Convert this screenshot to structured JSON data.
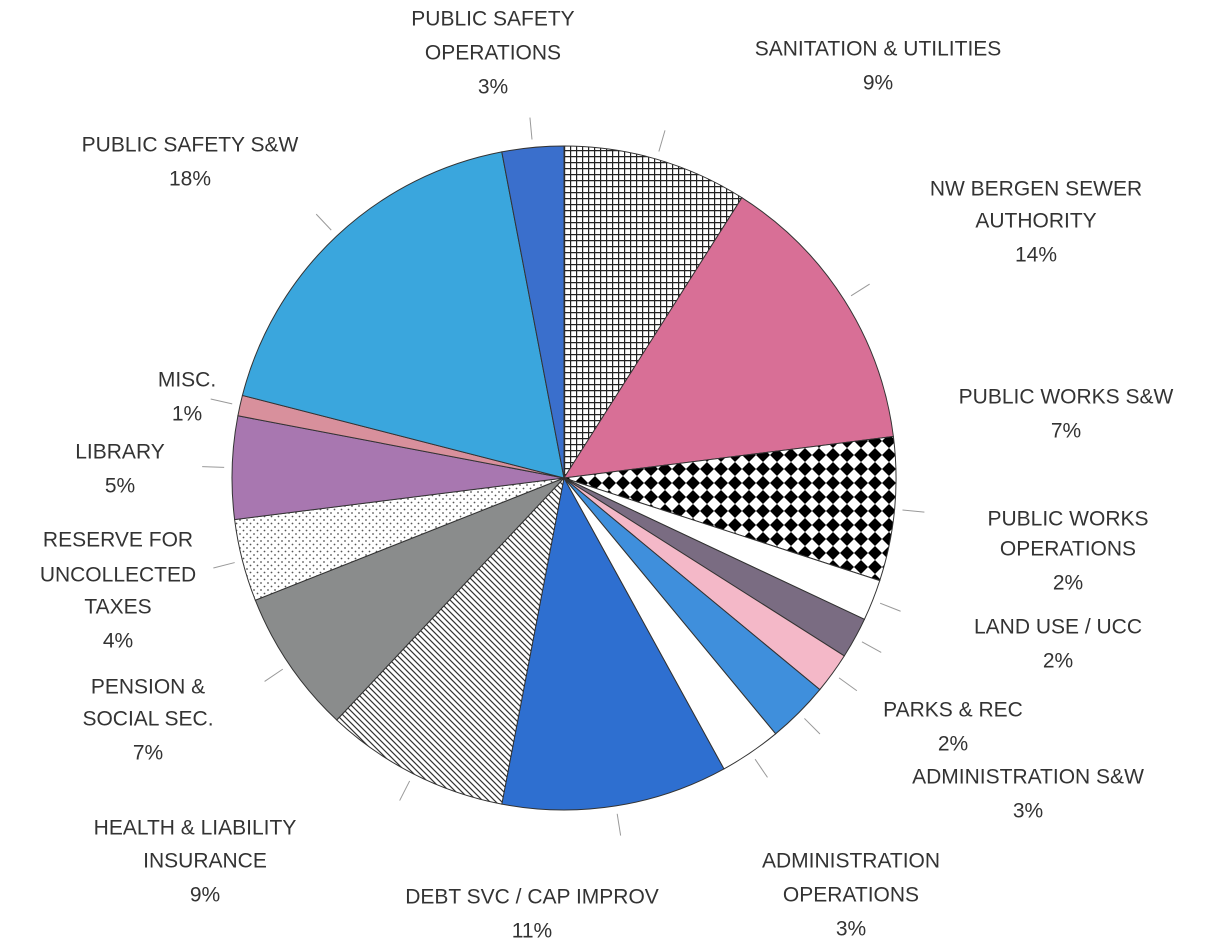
{
  "chart_data": {
    "type": "pie",
    "categories": [
      [
        "SANITATION & UTILITIES"
      ],
      [
        "NW BERGEN SEWER",
        "AUTHORITY"
      ],
      [
        "PUBLIC WORKS S&W"
      ],
      [
        "PUBLIC WORKS",
        "OPERATIONS"
      ],
      [
        "LAND USE / UCC"
      ],
      [
        "PARKS & REC"
      ],
      [
        "ADMINISTRATION S&W"
      ],
      [
        "ADMINISTRATION",
        "OPERATIONS"
      ],
      [
        "DEBT SVC / CAP IMPROV"
      ],
      [
        "HEALTH & LIABILITY",
        "INSURANCE"
      ],
      [
        "PENSION &",
        "SOCIAL SEC."
      ],
      [
        "RESERVE FOR",
        "UNCOLLECTED",
        "TAXES"
      ],
      [
        "LIBRARY"
      ],
      [
        "MISC."
      ],
      [
        "PUBLIC SAFETY S&W"
      ],
      [
        "PUBLIC SAFETY",
        "OPERATIONS"
      ]
    ],
    "values": [
      9,
      14,
      7,
      2,
      2,
      2,
      3,
      3,
      11,
      9,
      7,
      4,
      5,
      1,
      18,
      3
    ],
    "value_labels": [
      "9%",
      "14%",
      "7%",
      "2%",
      "2%",
      "2%",
      "3%",
      "3%",
      "11%",
      "9%",
      "7%",
      "4%",
      "5%",
      "1%",
      "18%",
      "3%"
    ],
    "colors": [
      "#222222",
      "#d86f96",
      "#000000",
      "#ffffff",
      "#7a6c82",
      "#f4b8c8",
      "#3f8fdc",
      "#ffffff",
      "#2e6fd0",
      "#333333",
      "#8a8c8c",
      "#555555",
      "#a877b0",
      "#d8909c",
      "#3aa6dd",
      "#3a6fcc"
    ],
    "patterns": [
      "grid",
      null,
      "checker",
      null,
      null,
      null,
      null,
      null,
      null,
      "hatch",
      null,
      "dots",
      null,
      null,
      null,
      null
    ]
  }
}
